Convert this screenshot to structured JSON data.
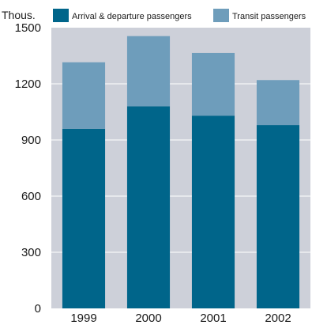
{
  "chart_data": {
    "type": "bar",
    "stacked": true,
    "unit_label": "Thous.",
    "categories": [
      "1999",
      "2000",
      "2001",
      "2002"
    ],
    "series": [
      {
        "name": "Arrival & departure passengers",
        "color": "#00658a",
        "values": [
          960,
          1080,
          1030,
          980
        ]
      },
      {
        "name": "Transit passengers",
        "color": "#6e9dbb",
        "values": [
          355,
          375,
          335,
          240
        ]
      }
    ],
    "ylim": [
      0,
      1500
    ],
    "yticks": [
      0,
      300,
      600,
      900,
      1200,
      1500
    ],
    "grid": true,
    "legend_position": "top",
    "background_color": "#cdd0d9",
    "grid_color": "#ffffff"
  }
}
